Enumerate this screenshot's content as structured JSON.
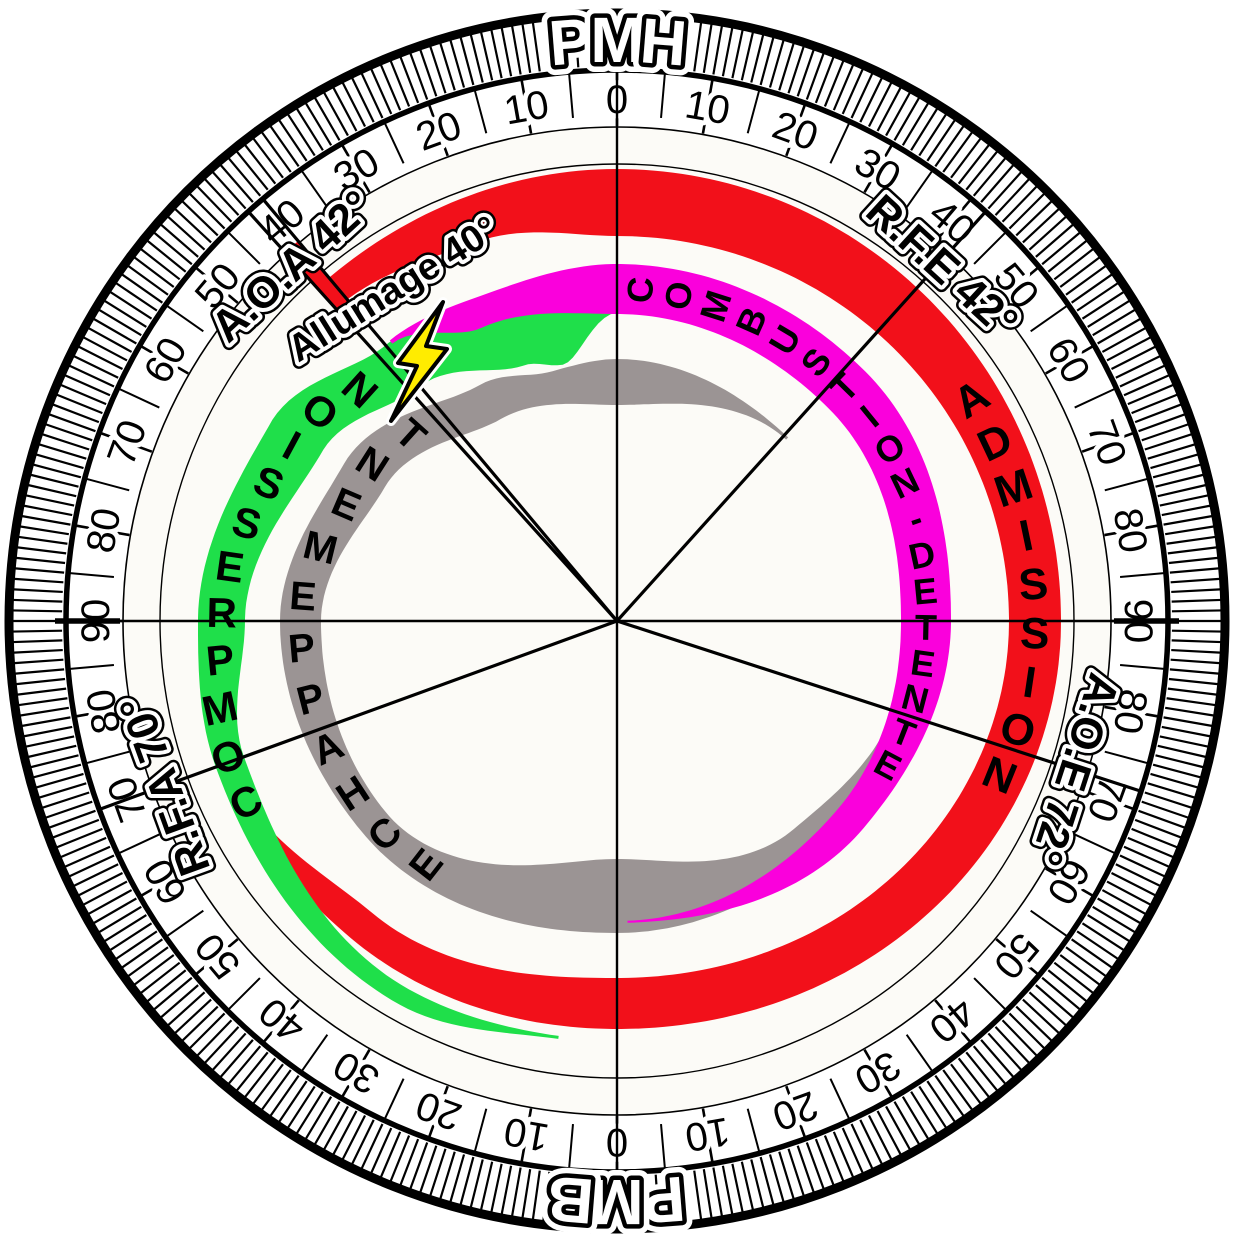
{
  "diagram": {
    "type": "four-stroke-engine-timing-circle",
    "dead_centers": {
      "top": "PMH",
      "bottom": "PMB"
    },
    "strokes": [
      {
        "id": "admission",
        "name": "ADMISSION",
        "color": "#f2101a"
      },
      {
        "id": "compression",
        "name": "COMPRESSION",
        "color": "#1fdf4a"
      },
      {
        "id": "combustion",
        "name": "COMBUSTION-DETENTE",
        "color": "#fa00dc"
      },
      {
        "id": "echappement",
        "name": "ECHAPPEMENT",
        "color": "#9b9494"
      }
    ],
    "events": [
      {
        "id": "aoa",
        "label": "A.O.A 42°",
        "angle_deg": -42
      },
      {
        "id": "allumage",
        "label": "Allumage 40°",
        "angle_deg": -40
      },
      {
        "id": "rfe",
        "label": "R.F.E 42°",
        "angle_deg": 42
      },
      {
        "id": "aoe",
        "label": "A.O.E 72°",
        "angle_deg": 108
      },
      {
        "id": "rfa",
        "label": "R.F.A 70°",
        "angle_deg": 250
      }
    ],
    "ignition_icon": "lightning-bolt",
    "ignition_color": "#ffec00",
    "scale": {
      "unit": "°",
      "minor_tick_deg": 5,
      "major_tick_deg": 10,
      "outer_tick_deg": 1,
      "numbers": [
        {
          "angle_deg": 0,
          "label": "0"
        },
        {
          "angle_deg": 10,
          "label": "10"
        },
        {
          "angle_deg": 20,
          "label": "20"
        },
        {
          "angle_deg": 30,
          "label": "30"
        },
        {
          "angle_deg": 40,
          "label": "40"
        },
        {
          "angle_deg": 50,
          "label": "50"
        },
        {
          "angle_deg": 60,
          "label": "60"
        },
        {
          "angle_deg": 70,
          "label": "70"
        },
        {
          "angle_deg": 80,
          "label": "80"
        },
        {
          "angle_deg": 90,
          "label": "90"
        },
        {
          "angle_deg": 100,
          "label": "80"
        },
        {
          "angle_deg": 110,
          "label": "70"
        },
        {
          "angle_deg": 120,
          "label": "60"
        },
        {
          "angle_deg": 130,
          "label": "50"
        },
        {
          "angle_deg": 140,
          "label": "40"
        },
        {
          "angle_deg": 150,
          "label": "30"
        },
        {
          "angle_deg": 160,
          "label": "20"
        },
        {
          "angle_deg": 170,
          "label": "10"
        },
        {
          "angle_deg": 180,
          "label": "0"
        },
        {
          "angle_deg": 190,
          "label": "10"
        },
        {
          "angle_deg": 200,
          "label": "20"
        },
        {
          "angle_deg": 210,
          "label": "30"
        },
        {
          "angle_deg": 220,
          "label": "40"
        },
        {
          "angle_deg": 230,
          "label": "50"
        },
        {
          "angle_deg": 240,
          "label": "60"
        },
        {
          "angle_deg": 250,
          "label": "70"
        },
        {
          "angle_deg": 260,
          "label": "80"
        },
        {
          "angle_deg": 270,
          "label": "90"
        },
        {
          "angle_deg": 280,
          "label": "80"
        },
        {
          "angle_deg": 290,
          "label": "70"
        },
        {
          "angle_deg": 300,
          "label": "60"
        },
        {
          "angle_deg": 310,
          "label": "50"
        },
        {
          "angle_deg": 320,
          "label": "40"
        },
        {
          "angle_deg": 330,
          "label": "30"
        },
        {
          "angle_deg": 340,
          "label": "20"
        },
        {
          "angle_deg": 350,
          "label": "10"
        }
      ]
    }
  }
}
